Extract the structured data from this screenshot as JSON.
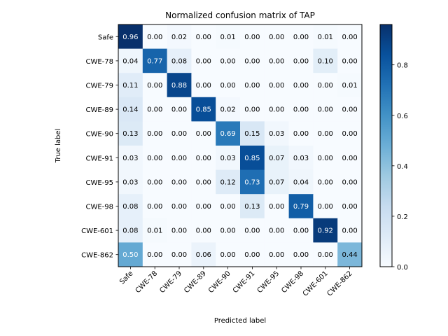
{
  "chart_data": {
    "type": "heatmap",
    "title": "Normalized confusion matrix of TAP",
    "xlabel": "Predicted label",
    "ylabel": "True label",
    "classes": [
      "Safe",
      "CWE-78",
      "CWE-79",
      "CWE-89",
      "CWE-90",
      "CWE-91",
      "CWE-95",
      "CWE-98",
      "CWE-601",
      "CWE-862"
    ],
    "matrix": [
      [
        0.96,
        0.0,
        0.02,
        0.0,
        0.01,
        0.0,
        0.0,
        0.0,
        0.01,
        0.0
      ],
      [
        0.04,
        0.77,
        0.08,
        0.0,
        0.0,
        0.0,
        0.0,
        0.0,
        0.1,
        0.0
      ],
      [
        0.11,
        0.0,
        0.88,
        0.0,
        0.0,
        0.0,
        0.0,
        0.0,
        0.0,
        0.01
      ],
      [
        0.14,
        0.0,
        0.0,
        0.85,
        0.02,
        0.0,
        0.0,
        0.0,
        0.0,
        0.0
      ],
      [
        0.13,
        0.0,
        0.0,
        0.0,
        0.69,
        0.15,
        0.03,
        0.0,
        0.0,
        0.0
      ],
      [
        0.03,
        0.0,
        0.0,
        0.0,
        0.03,
        0.85,
        0.07,
        0.03,
        0.0,
        0.0
      ],
      [
        0.03,
        0.0,
        0.0,
        0.0,
        0.12,
        0.73,
        0.07,
        0.04,
        0.0,
        0.0
      ],
      [
        0.08,
        0.0,
        0.0,
        0.0,
        0.0,
        0.13,
        0.0,
        0.79,
        0.0,
        0.0
      ],
      [
        0.08,
        0.01,
        0.0,
        0.0,
        0.0,
        0.0,
        0.0,
        0.0,
        0.92,
        0.0
      ],
      [
        0.5,
        0.0,
        0.0,
        0.06,
        0.0,
        0.0,
        0.0,
        0.0,
        0.0,
        0.44
      ]
    ],
    "colorbar": {
      "range": [
        0,
        0.96
      ],
      "ticks": [
        0.0,
        0.2,
        0.4,
        0.6,
        0.8
      ],
      "tick_labels": [
        "0.0",
        "0.2",
        "0.4",
        "0.6",
        "0.8"
      ],
      "colormap": "Blues"
    }
  }
}
